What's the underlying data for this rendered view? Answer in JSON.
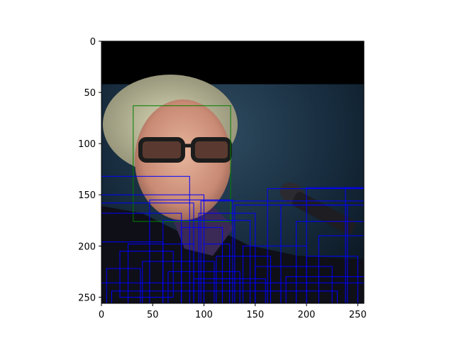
{
  "chart_data": {
    "type": "image",
    "title": "",
    "xlabel": "",
    "ylabel": "",
    "image_size": [
      256,
      256
    ],
    "xlim": [
      0,
      256
    ],
    "ylim": [
      256,
      0
    ],
    "x_ticks": [
      0,
      50,
      100,
      150,
      200,
      250
    ],
    "y_ticks": [
      0,
      50,
      100,
      150,
      200,
      250
    ],
    "image": {
      "description": "photo of a man with glasses and a microphone",
      "black_band_rows": [
        0,
        42
      ],
      "background_color": "#13222f"
    },
    "boxes": [
      {
        "label": "face",
        "color": "#008000",
        "x0": 31,
        "y0": 63,
        "x1": 126,
        "y1": 176
      },
      {
        "label": "",
        "color": "#0000ff",
        "x0": 0,
        "y0": 132,
        "x1": 86,
        "y1": 256
      },
      {
        "label": "",
        "color": "#0000ff",
        "x0": 0,
        "y0": 150,
        "x1": 100,
        "y1": 256
      },
      {
        "label": "",
        "color": "#0000ff",
        "x0": 0,
        "y0": 158,
        "x1": 90,
        "y1": 256
      },
      {
        "label": "",
        "color": "#0000ff",
        "x0": 0,
        "y0": 168,
        "x1": 78,
        "y1": 256
      },
      {
        "label": "",
        "color": "#0000ff",
        "x0": 0,
        "y0": 196,
        "x1": 60,
        "y1": 256
      },
      {
        "label": "",
        "color": "#0000ff",
        "x0": 5,
        "y0": 222,
        "x1": 38,
        "y1": 256
      },
      {
        "label": "",
        "color": "#0000ff",
        "x0": 18,
        "y0": 205,
        "x1": 70,
        "y1": 250
      },
      {
        "label": "",
        "color": "#0000ff",
        "x0": 47,
        "y0": 155,
        "x1": 128,
        "y1": 256
      },
      {
        "label": "",
        "color": "#0000ff",
        "x0": 60,
        "y0": 175,
        "x1": 145,
        "y1": 256
      },
      {
        "label": "",
        "color": "#0000ff",
        "x0": 78,
        "y0": 182,
        "x1": 118,
        "y1": 256
      },
      {
        "label": "",
        "color": "#0000ff",
        "x0": 95,
        "y0": 168,
        "x1": 150,
        "y1": 256
      },
      {
        "label": "",
        "color": "#0000ff",
        "x0": 100,
        "y0": 198,
        "x1": 125,
        "y1": 256
      },
      {
        "label": "",
        "color": "#0000ff",
        "x0": 112,
        "y0": 210,
        "x1": 165,
        "y1": 256
      },
      {
        "label": "",
        "color": "#0000ff",
        "x0": 97,
        "y0": 156,
        "x1": 256,
        "y1": 256
      },
      {
        "label": "",
        "color": "#0000ff",
        "x0": 130,
        "y0": 160,
        "x1": 256,
        "y1": 256
      },
      {
        "label": "",
        "color": "#0000ff",
        "x0": 162,
        "y0": 144,
        "x1": 256,
        "y1": 256
      },
      {
        "label": "",
        "color": "#0000ff",
        "x0": 175,
        "y0": 160,
        "x1": 240,
        "y1": 256
      },
      {
        "label": "",
        "color": "#0000ff",
        "x0": 190,
        "y0": 176,
        "x1": 256,
        "y1": 256
      },
      {
        "label": "",
        "color": "#0000ff",
        "x0": 200,
        "y0": 143,
        "x1": 256,
        "y1": 256
      },
      {
        "label": "",
        "color": "#0000ff",
        "x0": 212,
        "y0": 190,
        "x1": 256,
        "y1": 256
      },
      {
        "label": "",
        "color": "#0000ff",
        "x0": 238,
        "y0": 143,
        "x1": 256,
        "y1": 256
      },
      {
        "label": "",
        "color": "#0000ff",
        "x0": 26,
        "y0": 198,
        "x1": 90,
        "y1": 256
      },
      {
        "label": "",
        "color": "#0000ff",
        "x0": 40,
        "y0": 215,
        "x1": 110,
        "y1": 256
      },
      {
        "label": "",
        "color": "#0000ff",
        "x0": 65,
        "y0": 225,
        "x1": 135,
        "y1": 256
      },
      {
        "label": "",
        "color": "#0000ff",
        "x0": 90,
        "y0": 232,
        "x1": 160,
        "y1": 256
      },
      {
        "label": "",
        "color": "#0000ff",
        "x0": 138,
        "y0": 200,
        "x1": 200,
        "y1": 256
      },
      {
        "label": "",
        "color": "#0000ff",
        "x0": 150,
        "y0": 220,
        "x1": 225,
        "y1": 256
      },
      {
        "label": "",
        "color": "#0000ff",
        "x0": 180,
        "y0": 230,
        "x1": 256,
        "y1": 256
      },
      {
        "label": "",
        "color": "#0000ff",
        "x0": 200,
        "y0": 210,
        "x1": 250,
        "y1": 256
      },
      {
        "label": "",
        "color": "#0000ff",
        "x0": 0,
        "y0": 236,
        "x1": 256,
        "y1": 256
      },
      {
        "label": "",
        "color": "#0000ff",
        "x0": 10,
        "y0": 244,
        "x1": 230,
        "y1": 256
      }
    ]
  }
}
